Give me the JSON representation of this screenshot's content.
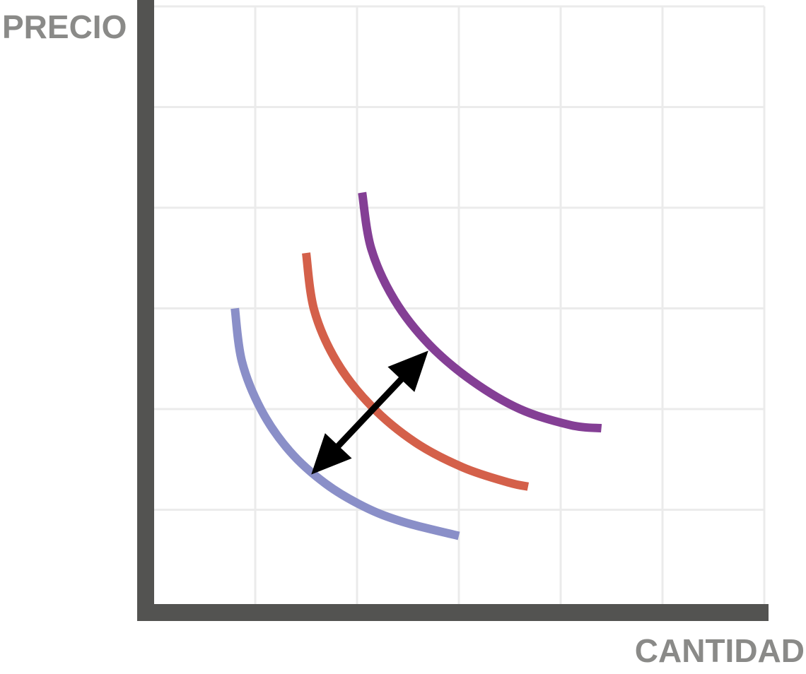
{
  "chart_data": {
    "type": "line",
    "title": "",
    "xlabel": "CANTIDAD",
    "ylabel": "PRECIO",
    "grid": true,
    "xlim": [
      0,
      6
    ],
    "ylim": [
      0,
      6
    ],
    "series": [
      {
        "color": "#8a8fc8",
        "x": [
          0.8,
          0.87,
          1.06,
          1.34,
          1.69,
          2.07,
          2.45,
          3.0
        ],
        "y": [
          3.0,
          2.47,
          1.99,
          1.58,
          1.26,
          1.03,
          0.88,
          0.74
        ]
      },
      {
        "color": "#d4604a",
        "x": [
          1.5,
          1.58,
          1.8,
          2.14,
          2.57,
          3.04,
          3.49,
          3.68
        ],
        "y": [
          3.55,
          2.98,
          2.47,
          2.03,
          1.67,
          1.42,
          1.27,
          1.23
        ]
      },
      {
        "color": "#843f95",
        "x": [
          2.05,
          2.14,
          2.37,
          2.71,
          3.13,
          3.6,
          4.1,
          4.4
        ],
        "y": [
          4.15,
          3.59,
          3.08,
          2.64,
          2.28,
          2.0,
          1.84,
          1.81
        ]
      }
    ],
    "annotations": [
      {
        "type": "double-arrow",
        "from": [
          1.55,
          1.35
        ],
        "to": [
          2.7,
          2.58
        ],
        "color": "#000000"
      }
    ]
  }
}
